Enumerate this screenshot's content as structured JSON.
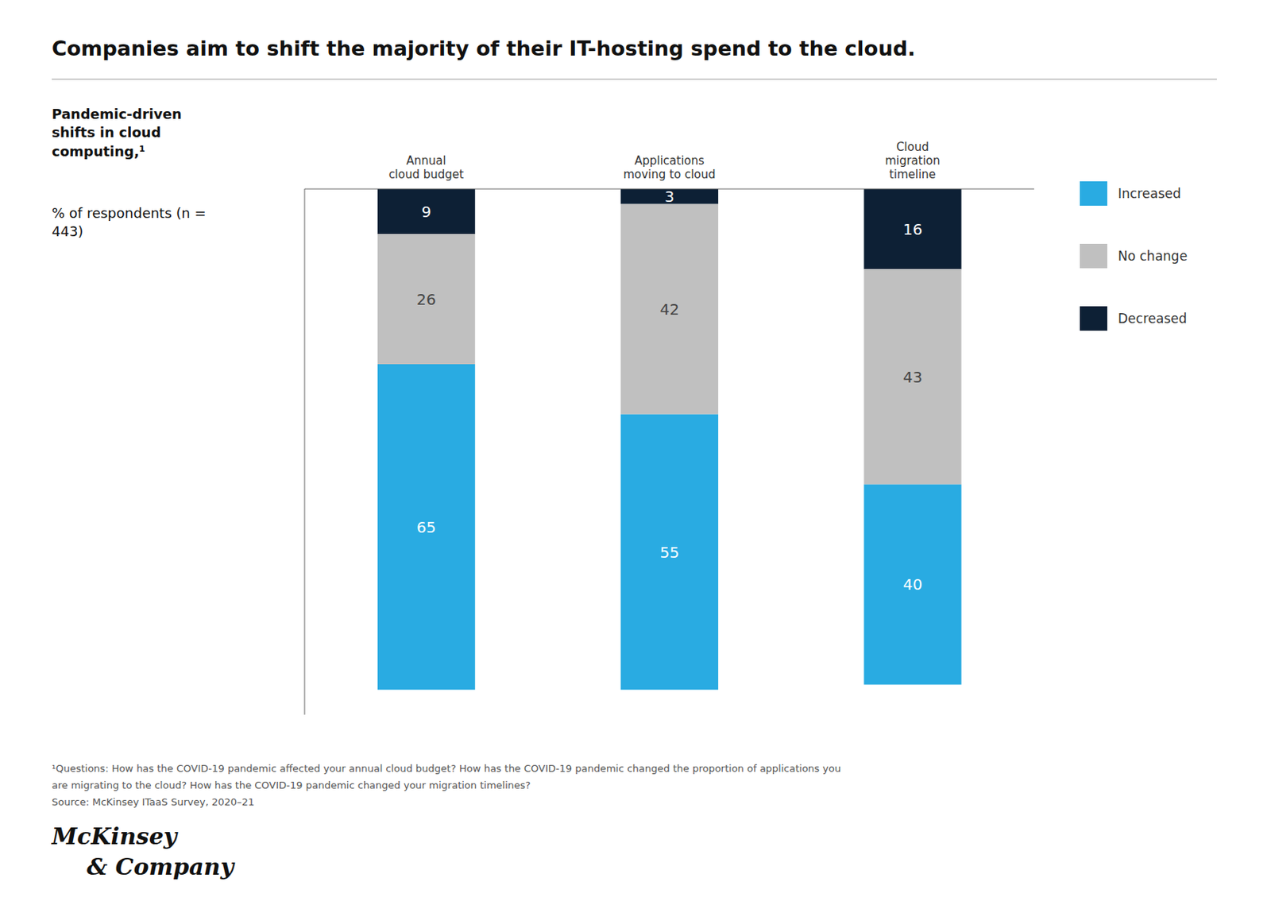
{
  "chart_data": {
    "type": "bar",
    "title": "Companies aim to shift the majority of their IT-hosting spend to the cloud.",
    "subtitle": "Pandemic-driven shifts in cloud computing,¹",
    "annotations": [
      "% of respondents (n = 443)",
      "¹Questions: How has the COVID-19 pandemic affected your annual cloud budget? How has the COVID-19 pandemic changed the proportion of applications you",
      "are migrating to the cloud? How has the COVID-19 pandemic changed your migration timelines?",
      "Source: McKinsey ITaaS Survey, 2020–21",
      "McKinsey",
      "& Company"
    ],
    "categories": [
      "Annual\ncloud budget",
      "Applications\nmoving to cloud",
      "Cloud\nmigration\ntimeline"
    ],
    "series": [
      {
        "name": "Increased",
        "color": "#29ABE2",
        "values": [
          65,
          55,
          40
        ]
      },
      {
        "name": "No change",
        "color": "#C0C0C0",
        "values": [
          26,
          42,
          43
        ]
      },
      {
        "name": "Decreased",
        "color": "#0D2035",
        "values": [
          9,
          3,
          16
        ]
      }
    ],
    "stacked": true,
    "data_labels": true,
    "ylim": [
      0,
      105
    ],
    "tick_labels": "x",
    "legend": "right",
    "grid": false
  }
}
